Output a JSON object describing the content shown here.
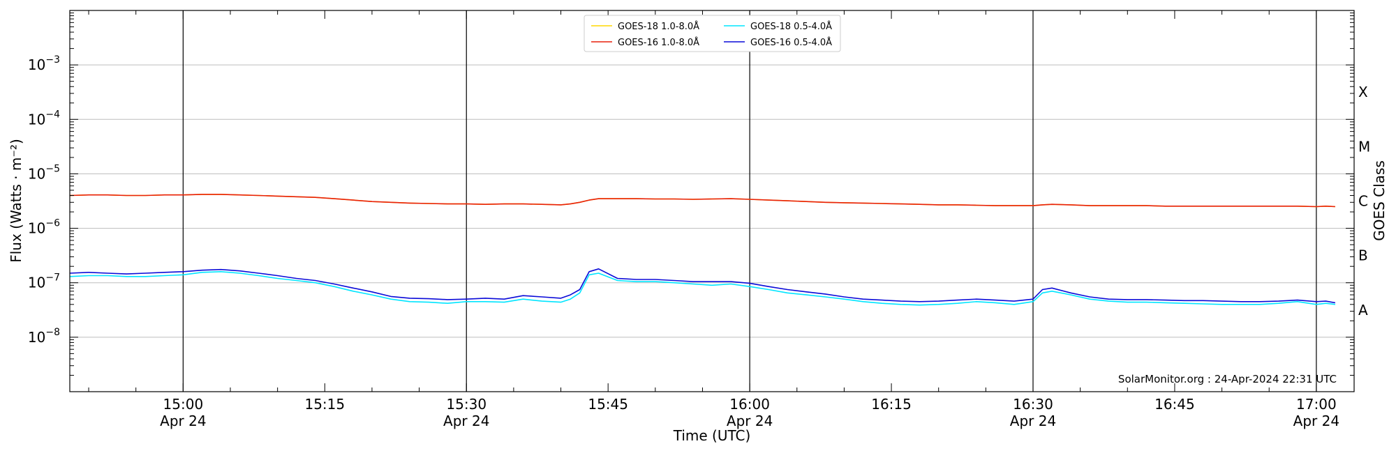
{
  "chart_data": {
    "type": "line",
    "xlabel": "Time (UTC)",
    "ylabel": "Flux (Watts · m⁻²)",
    "ylabel_right": "GOES Class",
    "credit": "SolarMonitor.org : 24-Apr-2024 22:31 UTC",
    "y_scale": "log",
    "ylim": [
      1e-09,
      0.01
    ],
    "xlim": [
      "14:48",
      "17:04"
    ],
    "y_ticks": [
      {
        "value": 1e-08,
        "label": "10",
        "exp": "−8"
      },
      {
        "value": 1e-07,
        "label": "10",
        "exp": "−7"
      },
      {
        "value": 1e-06,
        "label": "10",
        "exp": "−6"
      },
      {
        "value": 1e-05,
        "label": "10",
        "exp": "−5"
      },
      {
        "value": 0.0001,
        "label": "10",
        "exp": "−4"
      },
      {
        "value": 0.001,
        "label": "10",
        "exp": "−3"
      }
    ],
    "x_ticks": [
      {
        "time": "15:00",
        "date": "Apr 24"
      },
      {
        "time": "15:15",
        "date": ""
      },
      {
        "time": "15:30",
        "date": "Apr 24"
      },
      {
        "time": "15:45",
        "date": ""
      },
      {
        "time": "16:00",
        "date": "Apr 24"
      },
      {
        "time": "16:15",
        "date": ""
      },
      {
        "time": "16:30",
        "date": "Apr 24"
      },
      {
        "time": "16:45",
        "date": ""
      },
      {
        "time": "17:00",
        "date": "Apr 24"
      }
    ],
    "vertical_lines": [
      "15:00",
      "15:30",
      "16:00",
      "16:30",
      "17:00"
    ],
    "goes_classes": [
      {
        "label": "A",
        "value": 3.16e-08
      },
      {
        "label": "B",
        "value": 3.16e-07
      },
      {
        "label": "C",
        "value": 3.16e-06
      },
      {
        "label": "M",
        "value": 3.16e-05
      },
      {
        "label": "X",
        "value": 0.000316
      }
    ],
    "legend": {
      "placement": "top-center",
      "columns": 2
    },
    "grid": "horizontal",
    "series": [
      {
        "name": "GOES-18 1.0-8.0Å",
        "color": "#ffd700",
        "x": [
          "14:48",
          "14:50",
          "14:52",
          "14:54",
          "14:56",
          "14:58",
          "15:00",
          "15:02",
          "15:04",
          "15:06",
          "15:08",
          "15:10",
          "15:12",
          "15:14",
          "15:16",
          "15:18",
          "15:20",
          "15:22",
          "15:24",
          "15:26",
          "15:28",
          "15:30",
          "15:32",
          "15:34",
          "15:36",
          "15:38",
          "15:40",
          "15:41",
          "15:42",
          "15:43",
          "15:44",
          "15:46",
          "15:48",
          "15:50",
          "15:52",
          "15:54",
          "15:56",
          "15:58",
          "16:00",
          "16:02",
          "16:04",
          "16:06",
          "16:08",
          "16:10",
          "16:12",
          "16:14",
          "16:16",
          "16:18",
          "16:20",
          "16:22",
          "16:24",
          "16:26",
          "16:28",
          "16:30",
          "16:31",
          "16:32",
          "16:34",
          "16:36",
          "16:38",
          "16:40",
          "16:42",
          "16:44",
          "16:46",
          "16:48",
          "16:50",
          "16:52",
          "16:54",
          "16:56",
          "16:58",
          "17:00",
          "17:01",
          "17:02"
        ],
        "values": [
          4e-06,
          4.1e-06,
          4.1e-06,
          4e-06,
          4e-06,
          4.1e-06,
          4.1e-06,
          4.2e-06,
          4.2e-06,
          4.1e-06,
          4e-06,
          3.9e-06,
          3.8e-06,
          3.7e-06,
          3.5e-06,
          3.3e-06,
          3.1e-06,
          3e-06,
          2.9e-06,
          2.85e-06,
          2.8e-06,
          2.8e-06,
          2.75e-06,
          2.8e-06,
          2.8e-06,
          2.75e-06,
          2.7e-06,
          2.8e-06,
          3e-06,
          3.3e-06,
          3.5e-06,
          3.5e-06,
          3.5e-06,
          3.45e-06,
          3.45e-06,
          3.4e-06,
          3.45e-06,
          3.5e-06,
          3.4e-06,
          3.3e-06,
          3.2e-06,
          3.1e-06,
          3e-06,
          2.95e-06,
          2.9e-06,
          2.85e-06,
          2.8e-06,
          2.75e-06,
          2.7e-06,
          2.7e-06,
          2.65e-06,
          2.6e-06,
          2.6e-06,
          2.6e-06,
          2.7e-06,
          2.75e-06,
          2.7e-06,
          2.6e-06,
          2.6e-06,
          2.6e-06,
          2.6e-06,
          2.55e-06,
          2.55e-06,
          2.55e-06,
          2.55e-06,
          2.55e-06,
          2.55e-06,
          2.55e-06,
          2.55e-06,
          2.5e-06,
          2.55e-06,
          2.5e-06
        ]
      },
      {
        "name": "GOES-16 1.0-8.0Å",
        "color": "#e8200c",
        "x": [
          "14:48",
          "14:50",
          "14:52",
          "14:54",
          "14:56",
          "14:58",
          "15:00",
          "15:02",
          "15:04",
          "15:06",
          "15:08",
          "15:10",
          "15:12",
          "15:14",
          "15:16",
          "15:18",
          "15:20",
          "15:22",
          "15:24",
          "15:26",
          "15:28",
          "15:30",
          "15:32",
          "15:34",
          "15:36",
          "15:38",
          "15:40",
          "15:41",
          "15:42",
          "15:43",
          "15:44",
          "15:46",
          "15:48",
          "15:50",
          "15:52",
          "15:54",
          "15:56",
          "15:58",
          "16:00",
          "16:02",
          "16:04",
          "16:06",
          "16:08",
          "16:10",
          "16:12",
          "16:14",
          "16:16",
          "16:18",
          "16:20",
          "16:22",
          "16:24",
          "16:26",
          "16:28",
          "16:30",
          "16:31",
          "16:32",
          "16:34",
          "16:36",
          "16:38",
          "16:40",
          "16:42",
          "16:44",
          "16:46",
          "16:48",
          "16:50",
          "16:52",
          "16:54",
          "16:56",
          "16:58",
          "17:00",
          "17:01",
          "17:02"
        ],
        "values": [
          4e-06,
          4.1e-06,
          4.1e-06,
          4e-06,
          4e-06,
          4.1e-06,
          4.1e-06,
          4.2e-06,
          4.2e-06,
          4.1e-06,
          4e-06,
          3.9e-06,
          3.8e-06,
          3.7e-06,
          3.5e-06,
          3.3e-06,
          3.1e-06,
          3e-06,
          2.9e-06,
          2.85e-06,
          2.8e-06,
          2.8e-06,
          2.75e-06,
          2.8e-06,
          2.8e-06,
          2.75e-06,
          2.7e-06,
          2.8e-06,
          3e-06,
          3.3e-06,
          3.5e-06,
          3.5e-06,
          3.5e-06,
          3.45e-06,
          3.45e-06,
          3.4e-06,
          3.45e-06,
          3.5e-06,
          3.4e-06,
          3.3e-06,
          3.2e-06,
          3.1e-06,
          3e-06,
          2.95e-06,
          2.9e-06,
          2.85e-06,
          2.8e-06,
          2.75e-06,
          2.7e-06,
          2.7e-06,
          2.65e-06,
          2.6e-06,
          2.6e-06,
          2.6e-06,
          2.7e-06,
          2.75e-06,
          2.7e-06,
          2.6e-06,
          2.6e-06,
          2.6e-06,
          2.6e-06,
          2.55e-06,
          2.55e-06,
          2.55e-06,
          2.55e-06,
          2.55e-06,
          2.55e-06,
          2.55e-06,
          2.55e-06,
          2.5e-06,
          2.55e-06,
          2.5e-06
        ]
      },
      {
        "name": "GOES-18 0.5-4.0Å",
        "color": "#00e5ff",
        "x": [
          "14:48",
          "14:50",
          "14:52",
          "14:54",
          "14:56",
          "14:58",
          "15:00",
          "15:02",
          "15:04",
          "15:06",
          "15:08",
          "15:10",
          "15:12",
          "15:14",
          "15:16",
          "15:18",
          "15:20",
          "15:22",
          "15:24",
          "15:26",
          "15:28",
          "15:30",
          "15:32",
          "15:34",
          "15:36",
          "15:38",
          "15:40",
          "15:41",
          "15:42",
          "15:43",
          "15:44",
          "15:46",
          "15:48",
          "15:50",
          "15:52",
          "15:54",
          "15:56",
          "15:58",
          "16:00",
          "16:02",
          "16:04",
          "16:06",
          "16:08",
          "16:10",
          "16:12",
          "16:14",
          "16:16",
          "16:18",
          "16:20",
          "16:22",
          "16:24",
          "16:26",
          "16:28",
          "16:30",
          "16:31",
          "16:32",
          "16:34",
          "16:36",
          "16:38",
          "16:40",
          "16:42",
          "16:44",
          "16:46",
          "16:48",
          "16:50",
          "16:52",
          "16:54",
          "16:56",
          "16:58",
          "17:00",
          "17:01",
          "17:02"
        ],
        "values": [
          1.3e-07,
          1.35e-07,
          1.35e-07,
          1.3e-07,
          1.3e-07,
          1.35e-07,
          1.4e-07,
          1.55e-07,
          1.6e-07,
          1.5e-07,
          1.35e-07,
          1.2e-07,
          1.1e-07,
          1e-07,
          8.5e-08,
          7e-08,
          6e-08,
          5e-08,
          4.5e-08,
          4.4e-08,
          4.2e-08,
          4.5e-08,
          4.5e-08,
          4.4e-08,
          5e-08,
          4.6e-08,
          4.4e-08,
          5e-08,
          6.5e-08,
          1.4e-07,
          1.5e-07,
          1.1e-07,
          1.05e-07,
          1.05e-07,
          1e-07,
          9.5e-08,
          9e-08,
          9.5e-08,
          8.5e-08,
          7.5e-08,
          6.5e-08,
          6e-08,
          5.5e-08,
          5e-08,
          4.5e-08,
          4.2e-08,
          4e-08,
          3.9e-08,
          4e-08,
          4.2e-08,
          4.5e-08,
          4.3e-08,
          4e-08,
          4.5e-08,
          6.5e-08,
          7e-08,
          6e-08,
          5e-08,
          4.6e-08,
          4.4e-08,
          4.4e-08,
          4.3e-08,
          4.2e-08,
          4.1e-08,
          4e-08,
          4e-08,
          4e-08,
          4.2e-08,
          4.5e-08,
          4e-08,
          4.2e-08,
          4e-08
        ]
      },
      {
        "name": "GOES-16 0.5-4.0Å",
        "color": "#0a0ad8",
        "x": [
          "14:48",
          "14:50",
          "14:52",
          "14:54",
          "14:56",
          "14:58",
          "15:00",
          "15:02",
          "15:04",
          "15:06",
          "15:08",
          "15:10",
          "15:12",
          "15:14",
          "15:16",
          "15:18",
          "15:20",
          "15:22",
          "15:24",
          "15:26",
          "15:28",
          "15:30",
          "15:32",
          "15:34",
          "15:36",
          "15:38",
          "15:40",
          "15:41",
          "15:42",
          "15:43",
          "15:44",
          "15:46",
          "15:48",
          "15:50",
          "15:52",
          "15:54",
          "15:56",
          "15:58",
          "16:00",
          "16:02",
          "16:04",
          "16:06",
          "16:08",
          "16:10",
          "16:12",
          "16:14",
          "16:16",
          "16:18",
          "16:20",
          "16:22",
          "16:24",
          "16:26",
          "16:28",
          "16:30",
          "16:31",
          "16:32",
          "16:34",
          "16:36",
          "16:38",
          "16:40",
          "16:42",
          "16:44",
          "16:46",
          "16:48",
          "16:50",
          "16:52",
          "16:54",
          "16:56",
          "16:58",
          "17:00",
          "17:01",
          "17:02"
        ],
        "values": [
          1.5e-07,
          1.55e-07,
          1.5e-07,
          1.45e-07,
          1.5e-07,
          1.55e-07,
          1.6e-07,
          1.7e-07,
          1.75e-07,
          1.65e-07,
          1.5e-07,
          1.35e-07,
          1.2e-07,
          1.1e-07,
          9.5e-08,
          8e-08,
          6.8e-08,
          5.6e-08,
          5.2e-08,
          5.1e-08,
          4.9e-08,
          5e-08,
          5.2e-08,
          5e-08,
          5.8e-08,
          5.5e-08,
          5.2e-08,
          6e-08,
          7.5e-08,
          1.6e-07,
          1.8e-07,
          1.2e-07,
          1.15e-07,
          1.15e-07,
          1.1e-07,
          1.05e-07,
          1.05e-07,
          1.05e-07,
          9.8e-08,
          8.5e-08,
          7.5e-08,
          6.8e-08,
          6.2e-08,
          5.5e-08,
          5e-08,
          4.8e-08,
          4.6e-08,
          4.5e-08,
          4.6e-08,
          4.8e-08,
          5e-08,
          4.8e-08,
          4.6e-08,
          5e-08,
          7.5e-08,
          8e-08,
          6.5e-08,
          5.5e-08,
          5e-08,
          4.9e-08,
          4.9e-08,
          4.8e-08,
          4.7e-08,
          4.7e-08,
          4.6e-08,
          4.5e-08,
          4.5e-08,
          4.6e-08,
          4.8e-08,
          4.5e-08,
          4.6e-08,
          4.3e-08
        ]
      }
    ]
  }
}
